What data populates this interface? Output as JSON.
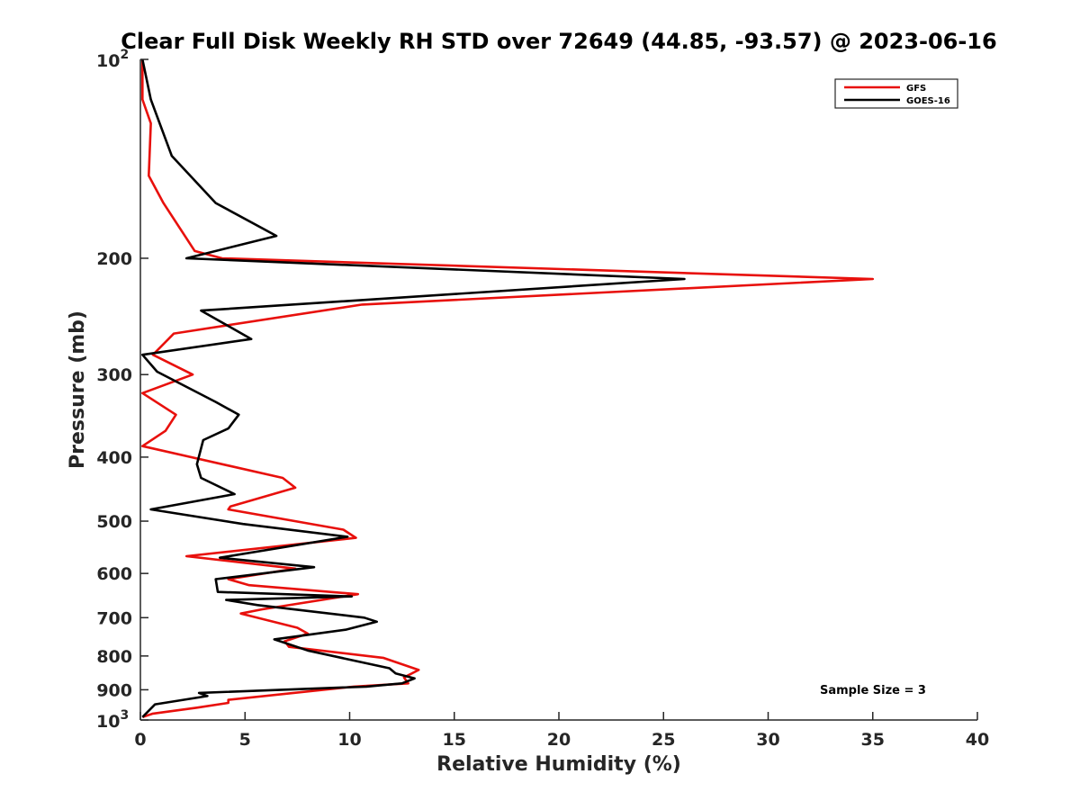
{
  "chart_data": {
    "type": "line",
    "title": "Clear Full Disk Weekly RH STD over 72649 (44.85, -93.57) @ 2023-06-16",
    "xlabel": "Relative Humidity (%)",
    "ylabel": "Pressure (mb)",
    "xlim": [
      0,
      40
    ],
    "ylim": [
      100,
      1000
    ],
    "y_scale": "log",
    "y_reversed": true,
    "x_ticks": [
      "0",
      "5",
      "10",
      "15",
      "20",
      "25",
      "30",
      "35",
      "40"
    ],
    "y_ticks": [
      {
        "value": 100,
        "base": "10",
        "exp": "2"
      },
      {
        "value": 200,
        "label": "200"
      },
      {
        "value": 300,
        "label": "300"
      },
      {
        "value": 400,
        "label": "400"
      },
      {
        "value": 500,
        "label": "500"
      },
      {
        "value": 600,
        "label": "600"
      },
      {
        "value": 700,
        "label": "700"
      },
      {
        "value": 800,
        "label": "800"
      },
      {
        "value": 900,
        "label": "900"
      },
      {
        "value": 1000,
        "base": "10",
        "exp": "3"
      }
    ],
    "legend_position": "top-right",
    "grid": false,
    "annotation": "Sample Size = 3",
    "series": [
      {
        "name": "GFS",
        "color": "#e8100c",
        "points": [
          [
            0.1,
            100
          ],
          [
            0.1,
            115
          ],
          [
            0.5,
            125
          ],
          [
            0.4,
            150
          ],
          [
            1.1,
            165
          ],
          [
            2.6,
            195
          ],
          [
            3.9,
            200
          ],
          [
            35.0,
            215
          ],
          [
            10.6,
            235
          ],
          [
            1.6,
            260
          ],
          [
            0.6,
            280
          ],
          [
            2.5,
            300
          ],
          [
            0.1,
            320
          ],
          [
            1.7,
            345
          ],
          [
            1.2,
            365
          ],
          [
            0.1,
            385
          ],
          [
            6.8,
            430
          ],
          [
            7.4,
            445
          ],
          [
            4.3,
            475
          ],
          [
            4.2,
            480
          ],
          [
            9.7,
            515
          ],
          [
            10.3,
            530
          ],
          [
            2.2,
            565
          ],
          [
            7.4,
            590
          ],
          [
            4.2,
            612
          ],
          [
            5.2,
            625
          ],
          [
            10.4,
            645
          ],
          [
            5.8,
            680
          ],
          [
            4.8,
            690
          ],
          [
            7.5,
            725
          ],
          [
            8.0,
            740
          ],
          [
            6.9,
            760
          ],
          [
            7.1,
            775
          ],
          [
            11.6,
            805
          ],
          [
            13.3,
            840
          ],
          [
            12.6,
            862
          ],
          [
            12.8,
            880
          ],
          [
            10.2,
            890
          ],
          [
            4.2,
            932
          ],
          [
            4.2,
            942
          ],
          [
            2.7,
            958
          ],
          [
            0.6,
            978
          ],
          [
            0.1,
            990
          ]
        ]
      },
      {
        "name": "GOES-16",
        "color": "#000000",
        "points": [
          [
            0.1,
            100
          ],
          [
            0.5,
            115
          ],
          [
            1.5,
            140
          ],
          [
            3.6,
            165
          ],
          [
            6.5,
            185
          ],
          [
            2.2,
            200
          ],
          [
            26.0,
            215
          ],
          [
            2.9,
            240
          ],
          [
            5.3,
            265
          ],
          [
            0.1,
            280
          ],
          [
            0.8,
            297
          ],
          [
            3.6,
            330
          ],
          [
            4.7,
            345
          ],
          [
            4.2,
            362
          ],
          [
            3.0,
            377
          ],
          [
            2.7,
            410
          ],
          [
            2.9,
            430
          ],
          [
            4.5,
            455
          ],
          [
            0.5,
            480
          ],
          [
            4.9,
            505
          ],
          [
            9.9,
            528
          ],
          [
            3.8,
            568
          ],
          [
            8.3,
            587
          ],
          [
            3.6,
            612
          ],
          [
            3.7,
            640
          ],
          [
            10.1,
            650
          ],
          [
            4.1,
            658
          ],
          [
            5.6,
            670
          ],
          [
            10.7,
            700
          ],
          [
            11.3,
            710
          ],
          [
            9.8,
            730
          ],
          [
            6.4,
            755
          ],
          [
            8.0,
            785
          ],
          [
            11.9,
            835
          ],
          [
            12.2,
            850
          ],
          [
            13.1,
            865
          ],
          [
            12.5,
            880
          ],
          [
            10.8,
            890
          ],
          [
            2.8,
            910
          ],
          [
            3.2,
            920
          ],
          [
            0.7,
            947
          ],
          [
            0.1,
            990
          ]
        ]
      }
    ]
  }
}
